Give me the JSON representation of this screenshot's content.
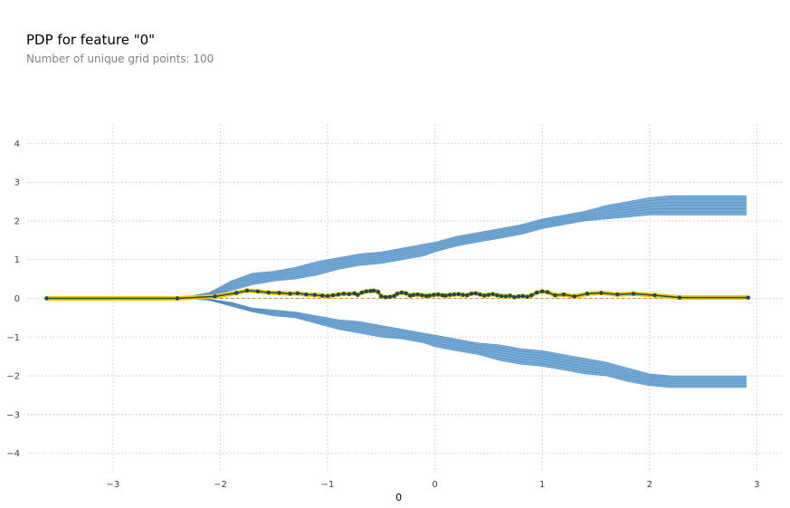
{
  "chart_data": {
    "type": "line",
    "title": "PDP for feature \"0\"",
    "subtitle": "Number of unique grid points: 100",
    "xlabel": "0",
    "ylabel": "",
    "xlim": [
      -3.8,
      3.25
    ],
    "ylim": [
      -4.5,
      4.5
    ],
    "xticks": [
      -3,
      -2,
      -1,
      0,
      1,
      2,
      3
    ],
    "yticks": [
      4,
      3,
      2,
      1,
      0,
      -1,
      -2,
      -3,
      -4
    ],
    "grid": true,
    "zero_line": {
      "y": 0,
      "color": "#e67e22",
      "style": "dashed"
    },
    "colors": {
      "ice_lines": "#4a90c8",
      "pdp_line": "#1a4a4a",
      "pdp_band": "#f1c40f",
      "pdp_markers": "#1a4a4a",
      "grid": "#cccccc"
    },
    "ice_envelopes": [
      {
        "name": "upper",
        "x": [
          -3.62,
          -2.4,
          -2.1,
          -1.9,
          -1.7,
          -1.5,
          -1.3,
          -1.1,
          -0.9,
          -0.7,
          -0.5,
          -0.3,
          -0.1,
          0.0,
          0.2,
          0.4,
          0.6,
          0.8,
          1.0,
          1.2,
          1.4,
          1.6,
          1.8,
          2.0,
          2.2,
          2.9
        ],
        "lower": [
          0.0,
          0.0,
          0.05,
          0.2,
          0.35,
          0.45,
          0.5,
          0.6,
          0.75,
          0.85,
          0.9,
          1.0,
          1.1,
          1.2,
          1.35,
          1.45,
          1.55,
          1.65,
          1.8,
          1.9,
          2.0,
          2.05,
          2.1,
          2.15,
          2.15,
          2.15
        ],
        "upper": [
          0.0,
          0.0,
          0.15,
          0.45,
          0.65,
          0.7,
          0.8,
          0.95,
          1.05,
          1.15,
          1.2,
          1.3,
          1.4,
          1.45,
          1.6,
          1.7,
          1.8,
          1.9,
          2.05,
          2.15,
          2.25,
          2.4,
          2.5,
          2.6,
          2.65,
          2.65
        ]
      },
      {
        "name": "lower",
        "x": [
          -3.62,
          -2.4,
          -2.1,
          -1.9,
          -1.7,
          -1.5,
          -1.3,
          -1.1,
          -0.9,
          -0.7,
          -0.5,
          -0.3,
          -0.1,
          0.0,
          0.2,
          0.4,
          0.6,
          0.8,
          1.0,
          1.2,
          1.4,
          1.6,
          1.8,
          2.0,
          2.2,
          2.9
        ],
        "upper": [
          0.0,
          0.0,
          -0.02,
          -0.1,
          -0.25,
          -0.3,
          -0.35,
          -0.45,
          -0.55,
          -0.6,
          -0.7,
          -0.8,
          -0.9,
          -0.95,
          -1.05,
          -1.15,
          -1.2,
          -1.3,
          -1.35,
          -1.45,
          -1.55,
          -1.65,
          -1.8,
          -1.95,
          -2.0,
          -2.0
        ],
        "lower": [
          0.0,
          0.0,
          -0.05,
          -0.2,
          -0.35,
          -0.45,
          -0.5,
          -0.65,
          -0.8,
          -0.9,
          -1.0,
          -1.05,
          -1.15,
          -1.25,
          -1.35,
          -1.45,
          -1.6,
          -1.7,
          -1.75,
          -1.85,
          -1.95,
          -2.0,
          -2.15,
          -2.25,
          -2.3,
          -2.3
        ]
      }
    ],
    "pdp_series": {
      "name": "",
      "x": [
        -3.62,
        -2.4,
        -2.05,
        -1.85,
        -1.75,
        -1.65,
        -1.55,
        -1.45,
        -1.35,
        -1.28,
        -1.2,
        -1.12,
        -1.05,
        -1.0,
        -0.95,
        -0.9,
        -0.85,
        -0.8,
        -0.75,
        -0.72,
        -0.68,
        -0.64,
        -0.6,
        -0.57,
        -0.53,
        -0.5,
        -0.46,
        -0.42,
        -0.38,
        -0.35,
        -0.31,
        -0.27,
        -0.23,
        -0.2,
        -0.16,
        -0.12,
        -0.08,
        -0.05,
        -0.01,
        0.03,
        0.07,
        0.1,
        0.14,
        0.18,
        0.22,
        0.26,
        0.3,
        0.34,
        0.38,
        0.42,
        0.46,
        0.5,
        0.54,
        0.58,
        0.62,
        0.66,
        0.7,
        0.74,
        0.78,
        0.82,
        0.86,
        0.9,
        0.95,
        1.0,
        1.05,
        1.12,
        1.2,
        1.3,
        1.42,
        1.55,
        1.7,
        1.85,
        2.05,
        2.28,
        2.92
      ],
      "y": [
        0.0,
        0.0,
        0.05,
        0.14,
        0.2,
        0.18,
        0.15,
        0.14,
        0.12,
        0.13,
        0.1,
        0.09,
        0.07,
        0.06,
        0.08,
        0.1,
        0.12,
        0.11,
        0.13,
        0.09,
        0.15,
        0.18,
        0.19,
        0.2,
        0.17,
        0.05,
        0.03,
        0.04,
        0.06,
        0.12,
        0.15,
        0.13,
        0.07,
        0.09,
        0.1,
        0.08,
        0.06,
        0.07,
        0.09,
        0.1,
        0.08,
        0.07,
        0.09,
        0.1,
        0.11,
        0.09,
        0.08,
        0.12,
        0.13,
        0.1,
        0.07,
        0.09,
        0.11,
        0.08,
        0.06,
        0.05,
        0.07,
        0.03,
        0.05,
        0.06,
        0.04,
        0.08,
        0.15,
        0.18,
        0.16,
        0.08,
        0.1,
        0.05,
        0.12,
        0.14,
        0.1,
        0.12,
        0.08,
        0.02,
        0.02
      ]
    }
  }
}
